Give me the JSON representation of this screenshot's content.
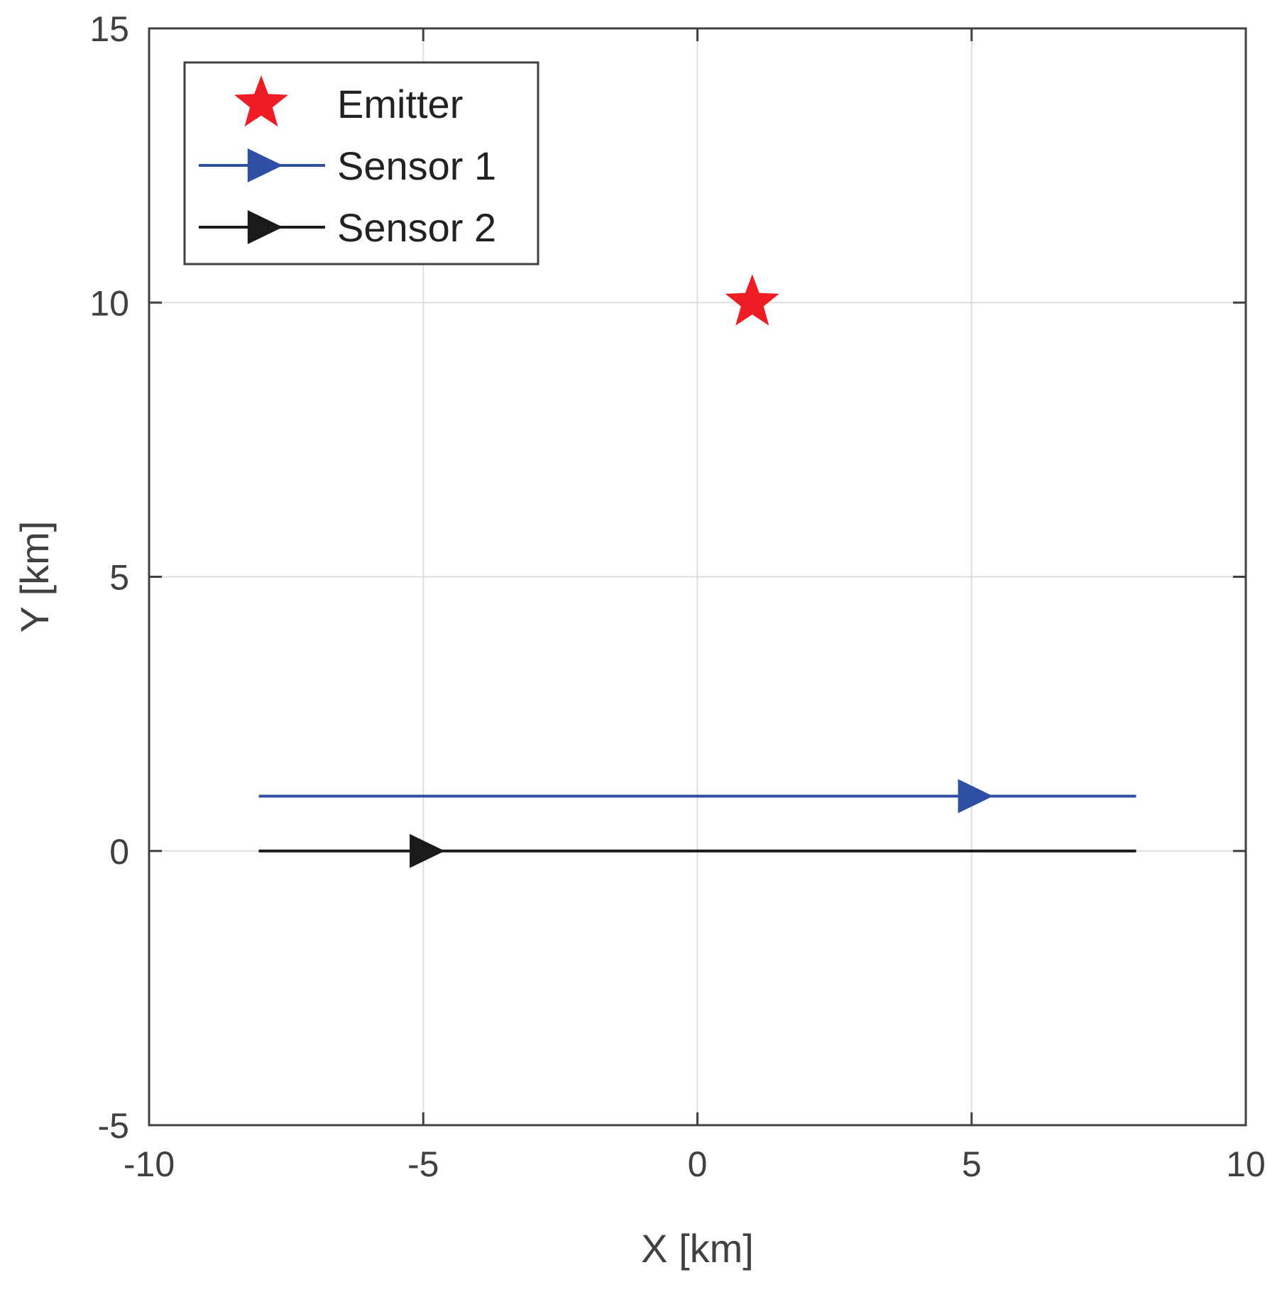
{
  "chart_data": {
    "type": "scatter",
    "title": "",
    "xlabel": "X [km]",
    "ylabel": "Y [km]",
    "xlim": [
      -10,
      10
    ],
    "ylim": [
      -5,
      15
    ],
    "xticks": [
      "-10",
      "-5",
      "0",
      "5",
      "10"
    ],
    "yticks": [
      "-5",
      "0",
      "5",
      "10",
      "15"
    ],
    "grid": true,
    "legend_position": "top-left",
    "series": [
      {
        "name": "Emitter",
        "marker": "star",
        "color": "#ee1c25",
        "points": [
          [
            1,
            10
          ]
        ]
      },
      {
        "name": "Sensor 1",
        "marker": "triangle-right",
        "color": "#2e4fa3",
        "line": {
          "x": [
            -8,
            8
          ],
          "y": [
            1,
            1
          ]
        },
        "marker_at": [
          5,
          1
        ]
      },
      {
        "name": "Sensor 2",
        "marker": "triangle-right",
        "color": "#1a1a1a",
        "line": {
          "x": [
            -8,
            8
          ],
          "y": [
            0,
            0
          ]
        },
        "marker_at": [
          -5,
          0
        ]
      }
    ]
  }
}
